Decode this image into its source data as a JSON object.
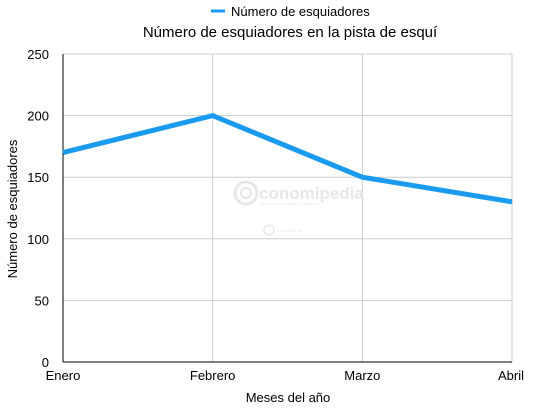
{
  "chart_data": {
    "type": "line",
    "title": "Número de esquiadores en la pista de esquí",
    "xlabel": "Meses del año",
    "ylabel": "Número de esquiadores",
    "categories": [
      "Enero",
      "Febrero",
      "Marzo",
      "Abril"
    ],
    "series": [
      {
        "name": "Número de esquiadores",
        "values": [
          170,
          200,
          150,
          130
        ],
        "color": "#1a9bf0"
      }
    ],
    "ylim": [
      0,
      250
    ],
    "yticks": [
      0,
      50,
      100,
      150,
      200,
      250
    ],
    "grid": true,
    "legend": "top"
  },
  "watermark": {
    "text": "conomipedia",
    "subtext": "Economía, Finanzas y Empresa",
    "small_text": "economipedia"
  }
}
